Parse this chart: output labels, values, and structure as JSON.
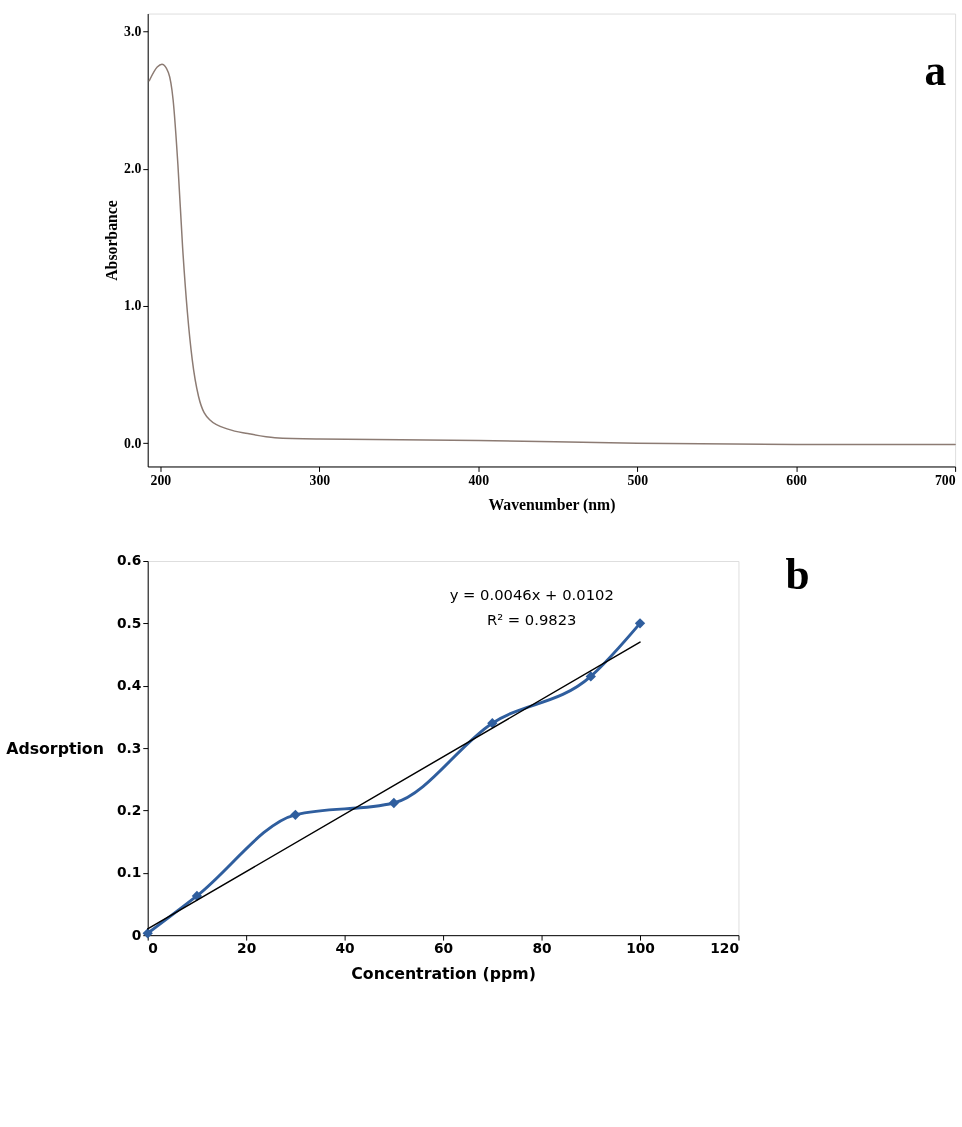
{
  "chart_data": [
    {
      "type": "line",
      "xlabel": "Wavenumber (nm)",
      "ylabel": "Absorbance",
      "annotations": [
        "a"
      ],
      "xlim": [
        192,
        700
      ],
      "ylim": [
        -0.17,
        3.13
      ],
      "xticks": [
        200,
        300,
        400,
        500,
        600,
        700
      ],
      "yticks": [
        {
          "value": 0,
          "label": "0.0"
        },
        {
          "value": 1,
          "label": "1.0"
        },
        {
          "value": 2,
          "label": "2.0"
        },
        {
          "value": 3,
          "label": "3.0"
        }
      ],
      "marker": "none",
      "series": [
        {
          "color": "#8c7b73",
          "x": [
            193,
            198,
            201,
            205,
            208,
            211,
            214,
            217,
            220,
            224,
            231,
            243,
            255,
            272,
            300,
            400,
            500,
            600,
            700
          ],
          "values": [
            2.64,
            2.74,
            2.76,
            2.7,
            2.5,
            2.03,
            1.42,
            0.95,
            0.61,
            0.34,
            0.17,
            0.1,
            0.07,
            0.04,
            0.03,
            0.02,
            0.0,
            -0.01,
            -0.01
          ]
        }
      ]
    },
    {
      "type": "line",
      "xlabel": "Concentration (ppm)",
      "ylabel": "Adsorption",
      "annotations": [
        "b",
        "y = 0.0046x + 0.0102",
        "R² = 0.9823"
      ],
      "xlim": [
        0,
        120
      ],
      "ylim": [
        0,
        0.6
      ],
      "xticks": [
        0,
        20,
        40,
        60,
        80,
        100,
        120
      ],
      "yticks": [
        0,
        0.1,
        0.2,
        0.3,
        0.4,
        0.5,
        0.6
      ],
      "marker": "diamond",
      "series": [
        {
          "color": "#2f5e9e",
          "x": [
            0,
            10,
            30,
            50,
            70,
            90,
            100
          ],
          "values": [
            0.003,
            0.063,
            0.193,
            0.212,
            0.34,
            0.415,
            0.5
          ]
        },
        {
          "color": "#000000",
          "marker": "none",
          "x": [
            0,
            100
          ],
          "values": [
            0.01,
            0.47
          ]
        }
      ]
    }
  ]
}
